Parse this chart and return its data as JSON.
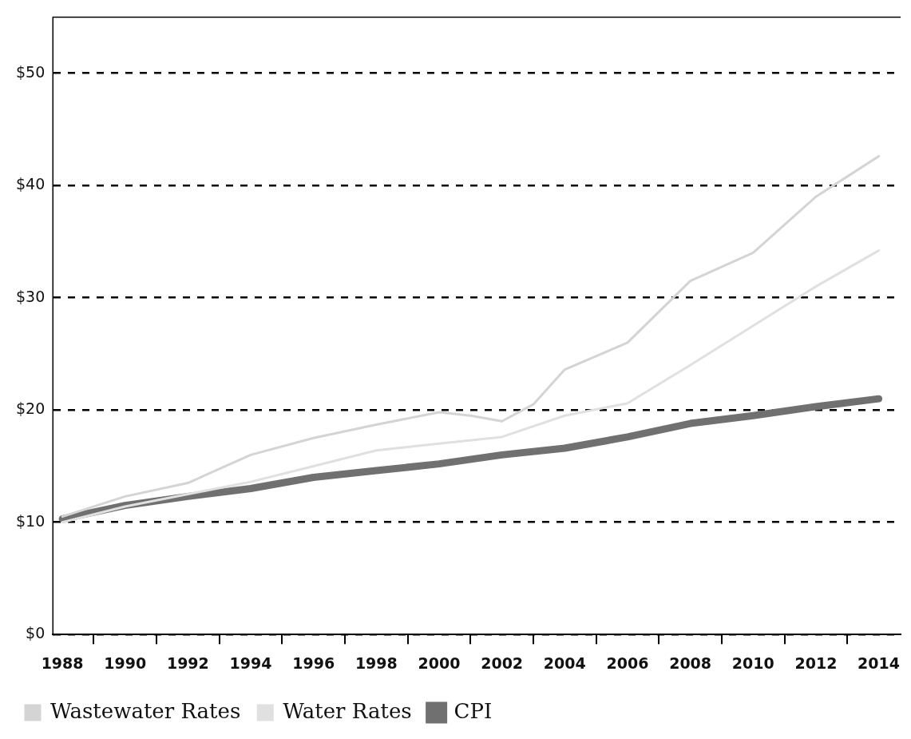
{
  "chart_data": {
    "type": "line",
    "series": [
      {
        "name": "Wastewater Rates",
        "color": "#d4d4d4",
        "x": [
          1988,
          1990,
          1992,
          1994,
          1996,
          1998,
          2000,
          2001,
          2002,
          2003,
          2004,
          2006,
          2008,
          2010,
          2012,
          2014
        ],
        "values": [
          10.5,
          12.3,
          13.5,
          16.0,
          17.5,
          18.7,
          19.8,
          19.5,
          19.0,
          20.5,
          23.6,
          26.0,
          31.5,
          34.0,
          39.0,
          42.6
        ]
      },
      {
        "name": "Water Rates",
        "color": "#e0e0e0",
        "x": [
          1988,
          1990,
          1992,
          1994,
          1996,
          1998,
          2000,
          2002,
          2004,
          2006,
          2008,
          2010,
          2012,
          2014
        ],
        "values": [
          10.0,
          11.4,
          12.5,
          13.6,
          15.0,
          16.4,
          17.0,
          17.6,
          19.5,
          20.6,
          24.0,
          27.5,
          31.0,
          34.2
        ]
      },
      {
        "name": "CPI",
        "color": "#707070",
        "x": [
          1988,
          1990,
          1992,
          1994,
          1996,
          1998,
          2000,
          2002,
          2004,
          2006,
          2008,
          2010,
          2012,
          2014
        ],
        "values": [
          10.3,
          11.5,
          12.3,
          13.0,
          14.0,
          14.6,
          15.2,
          16.0,
          16.6,
          17.6,
          18.8,
          19.5,
          20.3,
          21.0
        ]
      }
    ],
    "xlim": [
      1987.7,
      2014.7
    ],
    "xticks": [
      1988,
      {
        "value": 1989,
        "label": null
      },
      1990,
      {
        "value": 1991,
        "label": null
      },
      1992,
      {
        "value": 1993,
        "label": null
      },
      1994,
      {
        "value": 1995,
        "label": null
      },
      1996,
      {
        "value": 1997,
        "label": null
      },
      1998,
      {
        "value": 1999,
        "label": null
      },
      2000,
      {
        "value": 2001,
        "label": null
      },
      2002,
      {
        "value": 2003,
        "label": null
      },
      2004,
      {
        "value": 2005,
        "label": null
      },
      2006,
      {
        "value": 2007,
        "label": null
      },
      2008,
      {
        "value": 2009,
        "label": null
      },
      2010,
      {
        "value": 2011,
        "label": null
      },
      2012,
      {
        "value": 2013,
        "label": null
      },
      2014
    ],
    "ylim": [
      0,
      55
    ],
    "yticks": [
      {
        "value": 0,
        "label": "$0"
      },
      {
        "value": 10,
        "label": "$10"
      },
      {
        "value": 20,
        "label": "$20"
      },
      {
        "value": 30,
        "label": "$30"
      },
      {
        "value": 40,
        "label": "$40"
      },
      {
        "value": 50,
        "label": "$50"
      }
    ],
    "grid": "y",
    "legend": "bottom left"
  }
}
